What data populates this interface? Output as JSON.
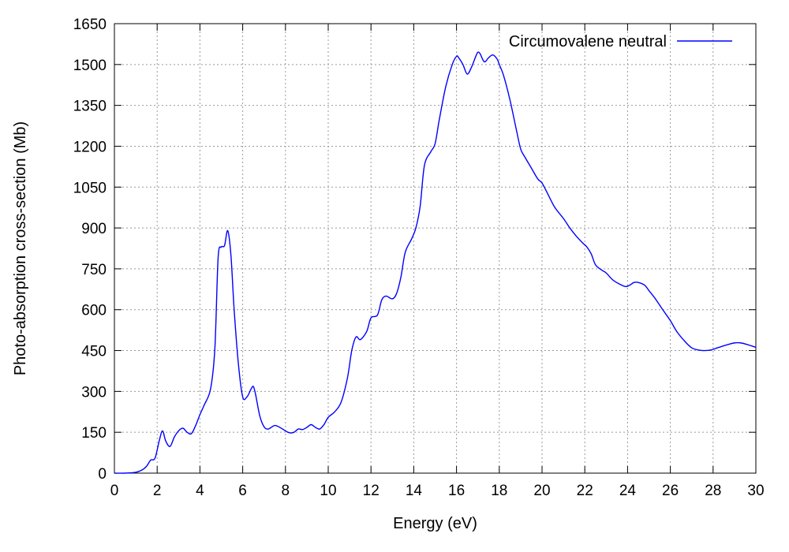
{
  "chart_data": {
    "type": "line",
    "xlabel": "Energy (eV)",
    "ylabel": "Photo-absorption cross-section (Mb)",
    "xlim": [
      0,
      30
    ],
    "ylim": [
      0,
      1650
    ],
    "xticks": [
      0,
      2,
      4,
      6,
      8,
      10,
      12,
      14,
      16,
      18,
      20,
      22,
      24,
      26,
      28,
      30
    ],
    "yticks": [
      0,
      150,
      300,
      450,
      600,
      750,
      900,
      1050,
      1200,
      1350,
      1500,
      1650
    ],
    "grid": true,
    "legend_position": "top-right",
    "series": [
      {
        "name": "Circumovalene neutral",
        "color": "#0000ff",
        "x": [
          0,
          0.5,
          1.0,
          1.3,
          1.5,
          1.7,
          1.9,
          2.1,
          2.25,
          2.4,
          2.6,
          2.8,
          3.0,
          3.2,
          3.4,
          3.6,
          3.8,
          4.0,
          4.2,
          4.5,
          4.7,
          4.85,
          5.0,
          5.15,
          5.3,
          5.45,
          5.6,
          5.8,
          6.0,
          6.2,
          6.4,
          6.5,
          6.6,
          6.8,
          7.0,
          7.2,
          7.5,
          7.8,
          8.0,
          8.2,
          8.4,
          8.6,
          8.8,
          9.0,
          9.2,
          9.4,
          9.6,
          9.8,
          10.0,
          10.3,
          10.6,
          10.9,
          11.1,
          11.3,
          11.5,
          11.8,
          12.0,
          12.3,
          12.5,
          12.7,
          13.0,
          13.2,
          13.4,
          13.6,
          13.9,
          14.1,
          14.3,
          14.5,
          14.8,
          15.0,
          15.2,
          15.5,
          15.8,
          16.0,
          16.1,
          16.3,
          16.5,
          16.7,
          16.9,
          17.0,
          17.1,
          17.3,
          17.5,
          17.7,
          17.9,
          18.0,
          18.2,
          18.5,
          18.8,
          19.0,
          19.2,
          19.5,
          19.8,
          20.0,
          20.3,
          20.6,
          21.0,
          21.3,
          21.6,
          21.9,
          22.1,
          22.3,
          22.5,
          22.8,
          23.0,
          23.3,
          23.6,
          23.9,
          24.1,
          24.3,
          24.5,
          24.8,
          25.0,
          25.3,
          25.6,
          26.0,
          26.3,
          26.7,
          27.0,
          27.3,
          27.6,
          27.9,
          28.2,
          28.6,
          29.0,
          29.3,
          29.6,
          30.0
        ],
        "values": [
          0,
          0,
          3,
          12,
          25,
          48,
          55,
          120,
          155,
          118,
          98,
          132,
          155,
          165,
          150,
          145,
          175,
          215,
          250,
          310,
          460,
          790,
          830,
          835,
          890,
          800,
          600,
          400,
          280,
          280,
          310,
          318,
          290,
          210,
          170,
          162,
          175,
          165,
          155,
          148,
          150,
          162,
          160,
          168,
          178,
          168,
          162,
          178,
          205,
          225,
          260,
          350,
          450,
          500,
          490,
          520,
          570,
          580,
          635,
          650,
          640,
          660,
          720,
          810,
          860,
          900,
          980,
          1130,
          1180,
          1210,
          1300,
          1420,
          1500,
          1530,
          1525,
          1500,
          1465,
          1490,
          1530,
          1545,
          1540,
          1510,
          1525,
          1535,
          1520,
          1500,
          1460,
          1370,
          1260,
          1190,
          1160,
          1120,
          1080,
          1065,
          1020,
          975,
          935,
          900,
          870,
          845,
          830,
          805,
          765,
          745,
          735,
          710,
          695,
          685,
          690,
          700,
          700,
          690,
          670,
          640,
          605,
          560,
          520,
          482,
          460,
          452,
          450,
          452,
          460,
          470,
          478,
          478,
          472,
          462
        ]
      }
    ]
  }
}
